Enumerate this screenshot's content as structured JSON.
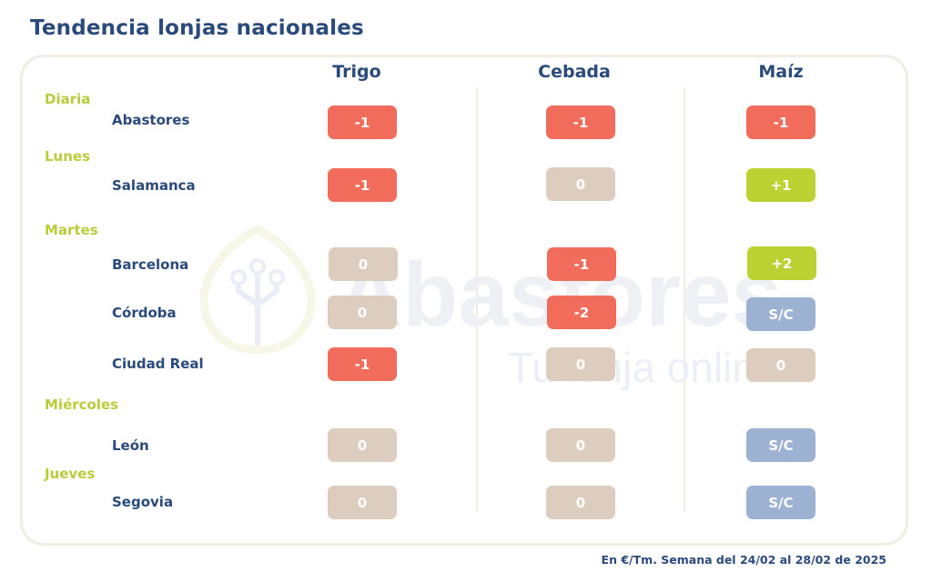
{
  "title": "Tendencia lonjas nacionales",
  "columns": [
    "Trigo",
    "Cebada",
    "Maíz"
  ],
  "days": [
    {
      "label": "Diaria"
    },
    {
      "label": "Lunes"
    },
    {
      "label": "Martes"
    },
    {
      "label": "Miércoles"
    },
    {
      "label": "Jueves"
    }
  ],
  "rows": [
    {
      "market": "Abastores",
      "values": [
        "-1",
        "-1",
        "-1"
      ]
    },
    {
      "market": "Salamanca",
      "values": [
        "-1",
        "0",
        "+1"
      ]
    },
    {
      "market": "Barcelona",
      "values": [
        "0",
        "-1",
        "+2"
      ]
    },
    {
      "market": "Córdoba",
      "values": [
        "0",
        "-2",
        "S/C"
      ]
    },
    {
      "market": "Ciudad Real",
      "values": [
        "-1",
        "0",
        "0"
      ]
    },
    {
      "market": "León",
      "values": [
        "0",
        "0",
        "S/C"
      ]
    },
    {
      "market": "Segovia",
      "values": [
        "0",
        "0",
        "S/C"
      ]
    }
  ],
  "colors": {
    "down": "#f26c5c",
    "neutral": "#dccdbf",
    "up": "#bcd233",
    "no_quote": "#9db2d2"
  },
  "watermark": {
    "brand": "Abastores",
    "tagline": "Tu lonja online",
    "icon": "leaf-circuit-icon"
  },
  "footnote": "En €/Tm. Semana del 24/02 al 28/02 de 2025"
}
